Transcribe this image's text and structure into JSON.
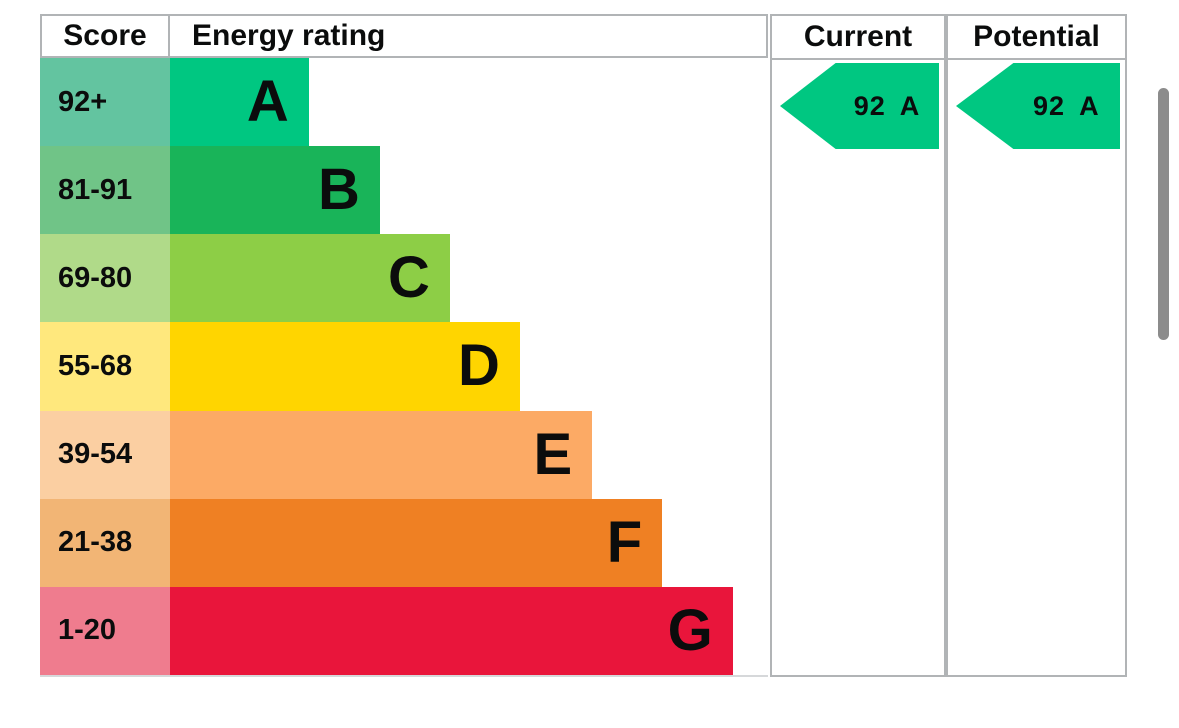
{
  "header": {
    "score_label": "Score",
    "rating_label": "Energy rating",
    "current_label": "Current",
    "potential_label": "Potential"
  },
  "bands": [
    {
      "score_range": "92+",
      "letter": "A",
      "bar_color": "#00c781",
      "score_bg": "#63c4a0",
      "bar_width_pct": 23.2
    },
    {
      "score_range": "81-91",
      "letter": "B",
      "bar_color": "#19b459",
      "score_bg": "#70c487",
      "bar_width_pct": 35.1
    },
    {
      "score_range": "69-80",
      "letter": "C",
      "bar_color": "#8dce46",
      "score_bg": "#b0da89",
      "bar_width_pct": 46.8
    },
    {
      "score_range": "55-68",
      "letter": "D",
      "bar_color": "#ffd500",
      "score_bg": "#ffe87d",
      "bar_width_pct": 58.5
    },
    {
      "score_range": "39-54",
      "letter": "E",
      "bar_color": "#fcaa65",
      "score_bg": "#fbcfa2",
      "bar_width_pct": 70.6
    },
    {
      "score_range": "21-38",
      "letter": "F",
      "bar_color": "#ef8023",
      "score_bg": "#f2b575",
      "bar_width_pct": 82.3
    },
    {
      "score_range": "1-20",
      "letter": "G",
      "bar_color": "#e9153b",
      "score_bg": "#ef7c8e",
      "bar_width_pct": 94.1
    }
  ],
  "current": {
    "value": "92",
    "letter": "A",
    "arrow_color": "#00c781"
  },
  "potential": {
    "value": "92",
    "letter": "A",
    "arrow_color": "#00c781"
  },
  "scrollbar": {
    "color": "#8c8c8c"
  },
  "border_color": "#b1b4b6",
  "chart_data": {
    "type": "bar",
    "title": "Energy rating",
    "orientation": "horizontal",
    "categories": [
      "A",
      "B",
      "C",
      "D",
      "E",
      "F",
      "G"
    ],
    "score_ranges": [
      "92+",
      "81-91",
      "69-80",
      "55-68",
      "39-54",
      "21-38",
      "1-20"
    ],
    "bar_length_pct_of_track": [
      23.2,
      35.1,
      46.8,
      58.5,
      70.6,
      82.3,
      94.1
    ],
    "band_colors": [
      "#00c781",
      "#19b459",
      "#8dce46",
      "#ffd500",
      "#fcaa65",
      "#ef8023",
      "#e9153b"
    ],
    "column_headers": [
      "Score",
      "Energy rating",
      "Current",
      "Potential"
    ],
    "current_rating": {
      "score": 92,
      "band": "A"
    },
    "potential_rating": {
      "score": 92,
      "band": "A"
    },
    "legend_position": "none",
    "grid": false
  }
}
